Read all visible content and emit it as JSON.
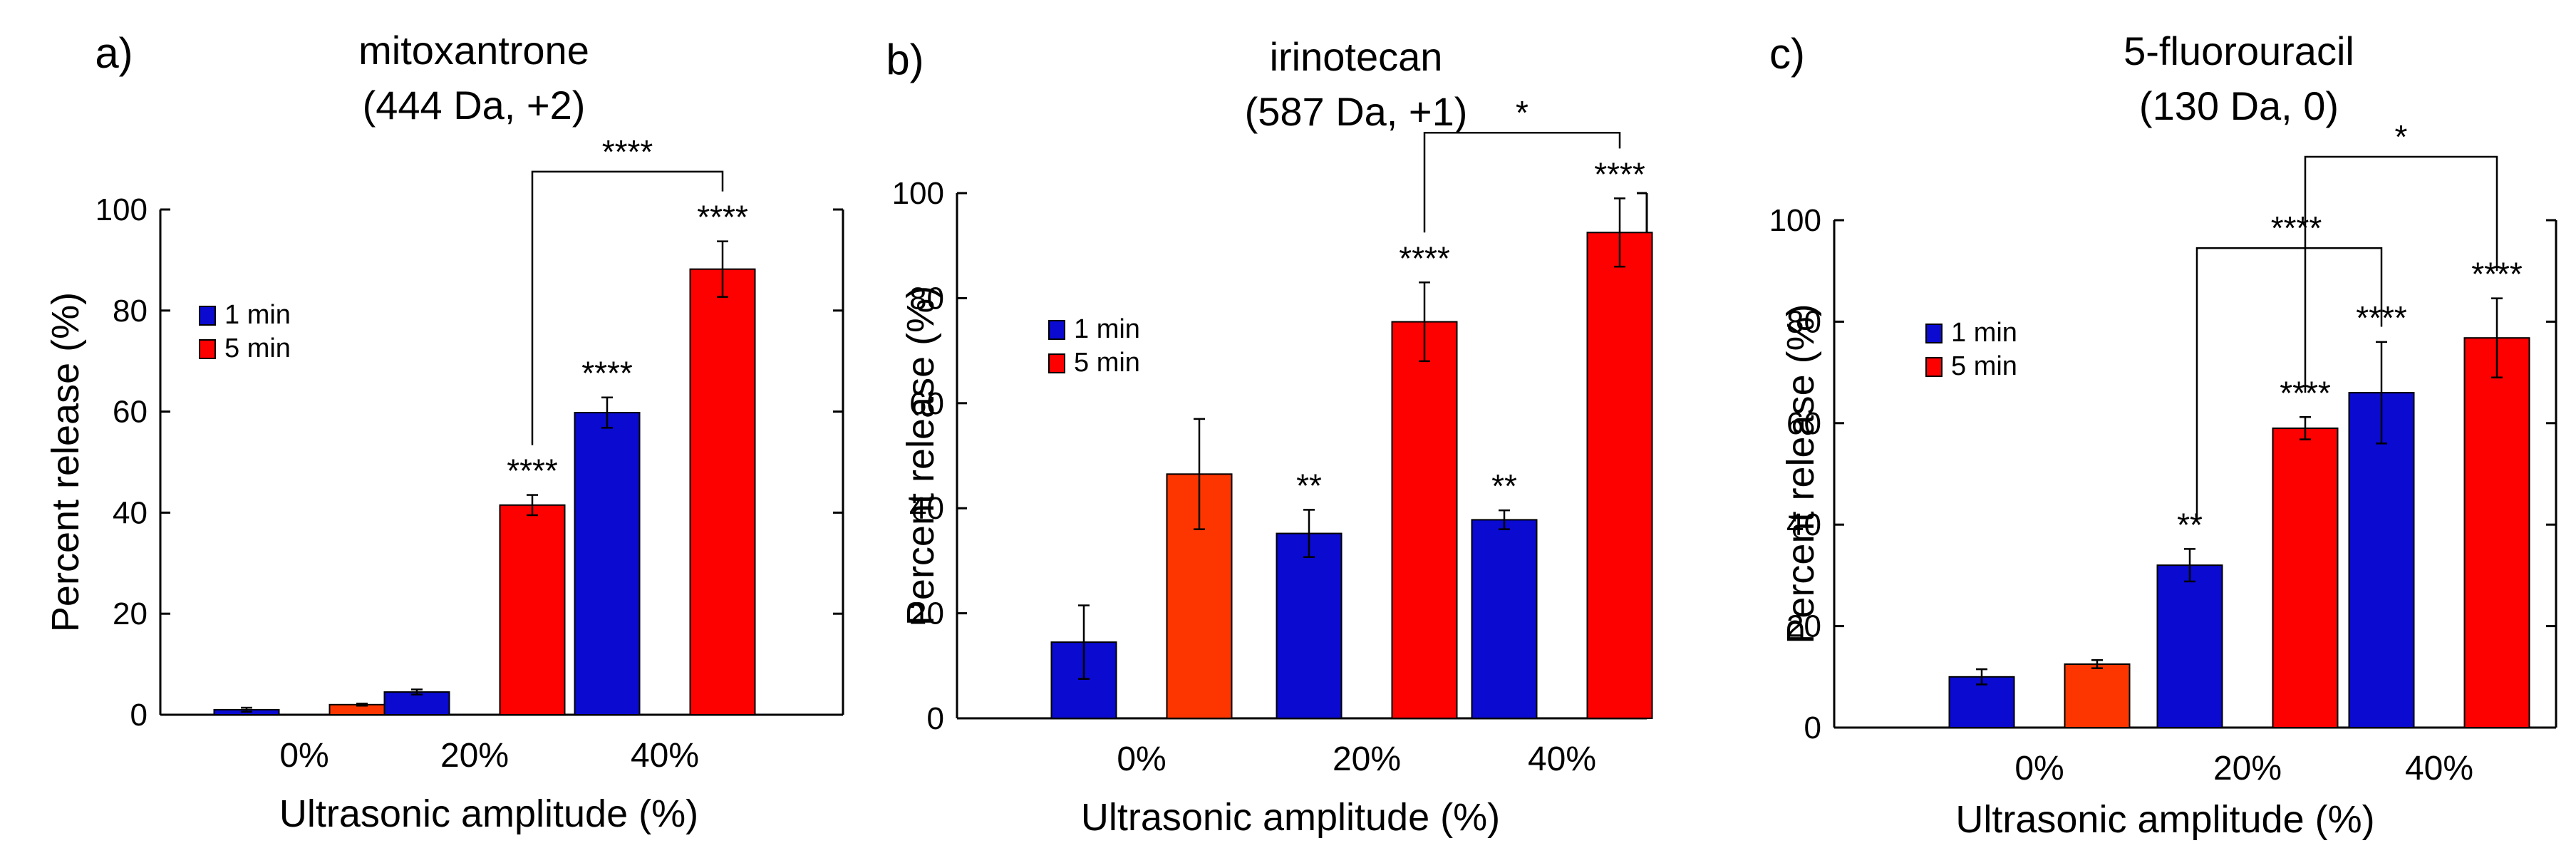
{
  "colors": {
    "series_1min": "#0a0ad0",
    "series_5min": "#fd0000",
    "bar_0pct_5min": "#fd3600",
    "axis": "#000000"
  },
  "chart_data": [
    {
      "type": "bar",
      "panel_label": "a)",
      "title": "mitoxantrone",
      "subtitle": "(444 Da, +2)",
      "xlabel": "Ultrasonic amplitude (%)",
      "ylabel": "Percent release (%)",
      "ylim": [
        0,
        100
      ],
      "yticks": [
        0,
        20,
        40,
        60,
        80,
        100
      ],
      "categories": [
        "0%",
        "20%",
        "40%"
      ],
      "legend": {
        "position": "center-left",
        "entries": [
          "1 min",
          "5 min"
        ]
      },
      "series": [
        {
          "name": "1 min",
          "values": [
            1.0,
            4.5,
            59.8
          ],
          "errors": [
            0.4,
            0.5,
            3.0
          ],
          "sig": [
            "",
            "",
            "****"
          ]
        },
        {
          "name": "5 min",
          "values": [
            2.0,
            41.5,
            88.2
          ],
          "errors": [
            0.2,
            2.0,
            5.5
          ],
          "sig": [
            "",
            "****",
            "****"
          ]
        }
      ],
      "brackets": [
        {
          "from": "20% 5 min",
          "to": "40% 5 min",
          "label": "****"
        }
      ]
    },
    {
      "type": "bar",
      "panel_label": "b)",
      "title": "irinotecan",
      "subtitle": "(587 Da, +1)",
      "xlabel": "Ultrasonic amplitude (%)",
      "ylabel": "Percent release (%)",
      "ylim": [
        0,
        100
      ],
      "yticks": [
        0,
        20,
        40,
        60,
        80,
        100
      ],
      "categories": [
        "0%",
        "20%",
        "40%"
      ],
      "legend": {
        "position": "center-left",
        "entries": [
          "1 min",
          "5 min"
        ]
      },
      "series": [
        {
          "name": "1 min",
          "values": [
            14.5,
            35.2,
            37.8
          ],
          "errors": [
            7.0,
            4.5,
            1.8
          ],
          "sig": [
            "",
            "**",
            "**"
          ]
        },
        {
          "name": "5 min",
          "values": [
            46.5,
            75.5,
            92.5
          ],
          "errors": [
            10.5,
            7.5,
            6.5
          ],
          "sig": [
            "",
            "****",
            "****"
          ]
        }
      ],
      "brackets": [
        {
          "from": "20% 5 min",
          "to": "40% 5 min",
          "label": "*"
        }
      ]
    },
    {
      "type": "bar",
      "panel_label": "c)",
      "title": "5-fluorouracil",
      "subtitle": "(130 Da, 0)",
      "xlabel": "Ultrasonic amplitude (%)",
      "ylabel": "Percent release (%)",
      "ylim": [
        0,
        100
      ],
      "yticks": [
        0,
        20,
        40,
        60,
        80,
        100
      ],
      "categories": [
        "0%",
        "20%",
        "40%"
      ],
      "legend": {
        "position": "center-left",
        "entries": [
          "1 min",
          "5 min"
        ]
      },
      "series": [
        {
          "name": "1 min",
          "values": [
            10.0,
            32.0,
            66.0
          ],
          "errors": [
            1.5,
            3.2,
            10.0
          ],
          "sig": [
            "",
            "**",
            "****"
          ]
        },
        {
          "name": "5 min",
          "values": [
            12.5,
            59.0,
            76.8
          ],
          "errors": [
            0.8,
            2.2,
            7.8
          ],
          "sig": [
            "",
            "****",
            "****"
          ]
        }
      ],
      "brackets": [
        {
          "from": "20% 1 min",
          "to": "40% 1 min",
          "label": "****"
        },
        {
          "from": "20% 5 min",
          "to": "40% 5 min",
          "label": "*"
        }
      ]
    }
  ]
}
